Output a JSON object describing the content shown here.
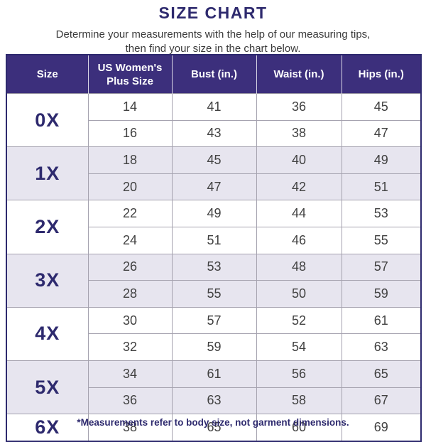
{
  "title": "SIZE CHART",
  "subtitle_line1": "Determine your measurements with the help of our measuring tips,",
  "subtitle_line2": "then find your size in the chart below.",
  "footnote": "*Measurements refer to body size, not garment dimensions.",
  "colors": {
    "header_bg": "#3C2F7C",
    "header_text": "#FFFFFF",
    "accent_navy": "#2E2A6E",
    "row_alt_bg": "#E7E5EF",
    "cell_text": "#414141",
    "grid_line": "#A5A2AF"
  },
  "chart_data": {
    "type": "table",
    "title": "SIZE CHART",
    "columns": [
      "Size",
      "US Women's Plus Size",
      "Bust (in.)",
      "Waist (in.)",
      "Hips (in.)"
    ],
    "groups": [
      {
        "size": "0X",
        "rows": [
          [
            14,
            41,
            36,
            45
          ],
          [
            16,
            43,
            38,
            47
          ]
        ]
      },
      {
        "size": "1X",
        "rows": [
          [
            18,
            45,
            40,
            49
          ],
          [
            20,
            47,
            42,
            51
          ]
        ]
      },
      {
        "size": "2X",
        "rows": [
          [
            22,
            49,
            44,
            53
          ],
          [
            24,
            51,
            46,
            55
          ]
        ]
      },
      {
        "size": "3X",
        "rows": [
          [
            26,
            53,
            48,
            57
          ],
          [
            28,
            55,
            50,
            59
          ]
        ]
      },
      {
        "size": "4X",
        "rows": [
          [
            30,
            57,
            52,
            61
          ],
          [
            32,
            59,
            54,
            63
          ]
        ]
      },
      {
        "size": "5X",
        "rows": [
          [
            34,
            61,
            56,
            65
          ],
          [
            36,
            63,
            58,
            67
          ]
        ]
      },
      {
        "size": "6X",
        "rows": [
          [
            38,
            65,
            60,
            69
          ]
        ]
      }
    ],
    "layout": {
      "striping": "alternate size groups white / lavender starting white",
      "size_column_rowspan": true
    }
  }
}
